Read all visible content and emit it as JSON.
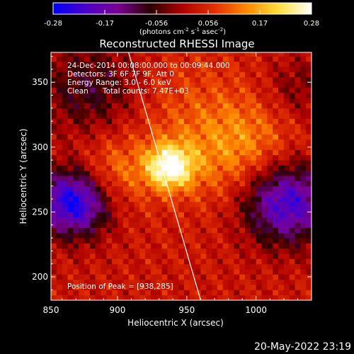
{
  "chart_data": {
    "type": "heatmap",
    "title": "Reconstructed RHESSI Image",
    "xlabel": "Heliocentric X (arcsec)",
    "ylabel": "Heliocentric Y (arcsec)",
    "xlim": [
      852,
      1040
    ],
    "ylim": [
      182,
      373
    ],
    "xticks": [
      850,
      900,
      950,
      1000
    ],
    "yticks": [
      200,
      250,
      300,
      350
    ],
    "grid": false,
    "colorbar": {
      "min": -0.28,
      "max": 0.28,
      "ticks": [
        "-0.28",
        "-0.17",
        "-0.056",
        "0.056",
        "0.17",
        "0.28"
      ],
      "unit_parts": [
        "(photons cm",
        "-2",
        " s",
        "-1",
        " asec",
        "-2",
        ")"
      ],
      "colormap": [
        "#0000ff",
        "#4b00c8",
        "#7a0094",
        "#2a0000",
        "#b00000",
        "#e33000",
        "#ff8a00",
        "#ffe040",
        "#ffffff"
      ]
    },
    "annotations": {
      "time_range": "24-Dec-2014 00:08:00.000 to 00:09:44.000",
      "detectors": "Detectors: 3F 6F 7F 9F, Att 0",
      "energy": "Energy Range: 3.0 - 6.0 keV",
      "algorithm": "Clean",
      "total_counts": "Total counts: 7.47E+03",
      "peak": "Position of Peak = [938,285]"
    },
    "peak": [
      938,
      285
    ],
    "limb_x_at_ylim": [
      908,
      960
    ]
  },
  "footer": {
    "timestamp": "20-May-2022 23:19"
  }
}
